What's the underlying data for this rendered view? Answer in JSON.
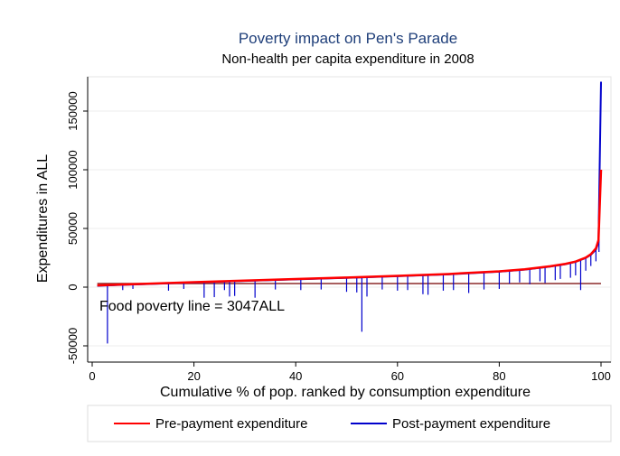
{
  "chart_data": {
    "type": "line",
    "title": "Poverty impact on Pen's Parade",
    "subtitle": "Non-health per capita expenditure in 2008",
    "xlabel": "Cumulative % of pop. ranked by consumption expenditure",
    "ylabel": "Expenditures in ALL",
    "xlim": [
      0,
      100
    ],
    "ylim": [
      -50000,
      180000
    ],
    "x_ticks": [
      0,
      20,
      40,
      60,
      80,
      100
    ],
    "y_ticks": [
      -50000,
      0,
      50000,
      100000,
      150000
    ],
    "x_tick_labels": [
      "0",
      "20",
      "40",
      "60",
      "80",
      "100"
    ],
    "y_tick_labels": [
      "-50000",
      "0",
      "50000",
      "100000",
      "150000"
    ],
    "grid": true,
    "legend_position": "bottom",
    "annotation": "Food poverty line = 3047ALL",
    "poverty_line": 3047,
    "series": [
      {
        "name": "Pre-payment expenditure",
        "color": "#ff0000",
        "x": [
          1,
          10,
          20,
          30,
          40,
          50,
          60,
          70,
          80,
          85,
          90,
          93,
          95,
          97,
          98,
          99,
          99.5,
          100
        ],
        "values": [
          1500,
          2800,
          4200,
          5600,
          6900,
          8200,
          9600,
          11200,
          13500,
          15200,
          17800,
          19800,
          21800,
          25200,
          28000,
          33000,
          40000,
          100000
        ]
      },
      {
        "name": "Post-payment expenditure",
        "color": "#0000cc",
        "x": [
          1,
          10,
          20,
          30,
          40,
          50,
          60,
          70,
          80,
          85,
          90,
          93,
          95,
          97,
          98,
          99,
          99.5,
          100
        ],
        "values": [
          1200,
          2500,
          3900,
          5300,
          6600,
          7900,
          9300,
          10900,
          13200,
          14900,
          17500,
          19500,
          21500,
          24800,
          27500,
          32000,
          38000,
          175000
        ],
        "drops": [
          {
            "x": 3,
            "y": -48000
          },
          {
            "x": 6,
            "y": -2500
          },
          {
            "x": 8,
            "y": -1500
          },
          {
            "x": 15,
            "y": -3000
          },
          {
            "x": 18,
            "y": -1500
          },
          {
            "x": 22,
            "y": -9000
          },
          {
            "x": 24,
            "y": -8500
          },
          {
            "x": 26,
            "y": -2500
          },
          {
            "x": 27,
            "y": -8000
          },
          {
            "x": 28,
            "y": -7500
          },
          {
            "x": 32,
            "y": -9000
          },
          {
            "x": 36,
            "y": -2000
          },
          {
            "x": 41,
            "y": -2500
          },
          {
            "x": 45,
            "y": -2000
          },
          {
            "x": 50,
            "y": -4000
          },
          {
            "x": 52,
            "y": -4500
          },
          {
            "x": 53,
            "y": -38000
          },
          {
            "x": 54,
            "y": -8000
          },
          {
            "x": 57,
            "y": -2000
          },
          {
            "x": 60,
            "y": -3000
          },
          {
            "x": 62,
            "y": -2500
          },
          {
            "x": 65,
            "y": -6000
          },
          {
            "x": 66,
            "y": -6500
          },
          {
            "x": 69,
            "y": -3000
          },
          {
            "x": 71,
            "y": -2500
          },
          {
            "x": 74,
            "y": -5000
          },
          {
            "x": 77,
            "y": -2000
          },
          {
            "x": 80,
            "y": -1500
          },
          {
            "x": 82,
            "y": 3000
          },
          {
            "x": 84,
            "y": 4000
          },
          {
            "x": 86,
            "y": 2500
          },
          {
            "x": 88,
            "y": 5000
          },
          {
            "x": 89,
            "y": 3500
          },
          {
            "x": 91,
            "y": 6000
          },
          {
            "x": 92,
            "y": 7000
          },
          {
            "x": 94,
            "y": 8000
          },
          {
            "x": 95,
            "y": 10000
          },
          {
            "x": 96,
            "y": -2500
          },
          {
            "x": 97,
            "y": 14000
          },
          {
            "x": 98,
            "y": 18000
          },
          {
            "x": 99,
            "y": 22000
          },
          {
            "x": 99.6,
            "y": 30000
          }
        ]
      }
    ]
  }
}
